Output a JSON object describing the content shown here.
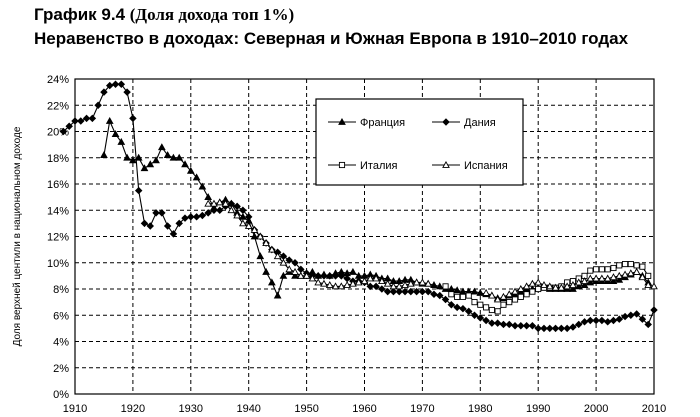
{
  "header": {
    "label": "График 9.4",
    "subtitle": "(Доля дохода топ 1%)",
    "title": "Неравенство в доходах: Северная и Южная Европа в 1910–2010 годах"
  },
  "colors": {
    "line": "#000000",
    "grid": "#000000",
    "background": "#ffffff"
  },
  "chart_data": {
    "type": "line",
    "title": "Неравенство в доходах: Северная и Южная Европа в 1910–2010 годах",
    "subtitle": "(Доля дохода топ 1%)",
    "xlabel": "",
    "ylabel": "Доля верхней центили в национальном доходе",
    "xlim": [
      1910,
      2010
    ],
    "ylim": [
      0,
      24
    ],
    "x_ticks": [
      1910,
      1920,
      1930,
      1940,
      1950,
      1960,
      1970,
      1980,
      1990,
      2000,
      2010
    ],
    "x_tick_labels": [
      "1910",
      "1920",
      "1930",
      "1940",
      "1950",
      "1960",
      "1970",
      "1980",
      "1990",
      "2000",
      "2010"
    ],
    "y_ticks": [
      0,
      2,
      4,
      6,
      8,
      10,
      12,
      14,
      16,
      18,
      20,
      22,
      24
    ],
    "y_tick_labels": [
      "0%",
      "2%",
      "4%",
      "6%",
      "8%",
      "10%",
      "12%",
      "14%",
      "16%",
      "18%",
      "20%",
      "22%",
      "24%"
    ],
    "grid": "dashed",
    "legend_position": "top-right",
    "series": [
      {
        "name": "Франция",
        "marker": "filled-triangle",
        "points": [
          [
            1915,
            18.2
          ],
          [
            1916,
            20.8
          ],
          [
            1917,
            19.8
          ],
          [
            1918,
            19.2
          ],
          [
            1919,
            18.0
          ],
          [
            1920,
            17.8
          ],
          [
            1921,
            18.0
          ],
          [
            1922,
            17.2
          ],
          [
            1923,
            17.5
          ],
          [
            1924,
            17.8
          ],
          [
            1925,
            18.8
          ],
          [
            1926,
            18.2
          ],
          [
            1927,
            18.0
          ],
          [
            1928,
            18.0
          ],
          [
            1929,
            17.5
          ],
          [
            1930,
            17.0
          ],
          [
            1931,
            16.5
          ],
          [
            1932,
            15.8
          ],
          [
            1933,
            15.0
          ],
          [
            1934,
            14.2
          ],
          [
            1935,
            14.6
          ],
          [
            1936,
            14.8
          ],
          [
            1937,
            14.5
          ],
          [
            1938,
            13.8
          ],
          [
            1939,
            13.5
          ],
          [
            1940,
            13.2
          ],
          [
            1941,
            12.0
          ],
          [
            1942,
            10.5
          ],
          [
            1943,
            9.3
          ],
          [
            1944,
            8.5
          ],
          [
            1945,
            7.5
          ],
          [
            1946,
            9.0
          ],
          [
            1947,
            9.3
          ],
          [
            1948,
            9.0
          ],
          [
            1949,
            9.0
          ],
          [
            1950,
            9.0
          ],
          [
            1951,
            9.3
          ],
          [
            1952,
            9.0
          ],
          [
            1953,
            9.1
          ],
          [
            1954,
            9.0
          ],
          [
            1955,
            9.2
          ],
          [
            1956,
            9.3
          ],
          [
            1957,
            9.2
          ],
          [
            1958,
            9.3
          ],
          [
            1959,
            9.0
          ],
          [
            1960,
            9.0
          ],
          [
            1961,
            9.1
          ],
          [
            1962,
            9.0
          ],
          [
            1963,
            8.8
          ],
          [
            1964,
            8.8
          ],
          [
            1965,
            8.6
          ],
          [
            1966,
            8.6
          ],
          [
            1967,
            8.7
          ],
          [
            1968,
            8.7
          ],
          [
            1969,
            8.5
          ],
          [
            1970,
            8.4
          ],
          [
            1971,
            8.4
          ],
          [
            1972,
            8.3
          ],
          [
            1973,
            8.2
          ],
          [
            1974,
            8.0
          ],
          [
            1975,
            8.0
          ],
          [
            1976,
            7.9
          ],
          [
            1977,
            7.8
          ],
          [
            1978,
            7.8
          ],
          [
            1979,
            7.8
          ],
          [
            1980,
            7.7
          ],
          [
            1981,
            7.6
          ],
          [
            1982,
            7.5
          ],
          [
            1983,
            7.3
          ],
          [
            1984,
            7.3
          ],
          [
            1985,
            7.5
          ],
          [
            1986,
            7.6
          ],
          [
            1987,
            7.8
          ],
          [
            1988,
            8.0
          ],
          [
            1989,
            8.0
          ],
          [
            1990,
            8.1
          ],
          [
            1991,
            8.1
          ],
          [
            1992,
            8.0
          ],
          [
            1993,
            8.0
          ],
          [
            1994,
            8.0
          ],
          [
            1995,
            8.0
          ],
          [
            1996,
            8.0
          ],
          [
            1997,
            8.2
          ],
          [
            1998,
            8.3
          ],
          [
            1999,
            8.5
          ],
          [
            2000,
            8.6
          ],
          [
            2001,
            8.6
          ],
          [
            2002,
            8.6
          ],
          [
            2003,
            8.6
          ],
          [
            2004,
            8.7
          ],
          [
            2005,
            8.9
          ],
          [
            2006,
            9.1
          ],
          [
            2007,
            9.3
          ],
          [
            2008,
            9.0
          ],
          [
            2009,
            8.5
          ]
        ]
      },
      {
        "name": "Дания",
        "marker": "filled-diamond",
        "points": [
          [
            1908,
            20.0
          ],
          [
            1909,
            20.4
          ],
          [
            1910,
            20.8
          ],
          [
            1911,
            20.8
          ],
          [
            1912,
            21.0
          ],
          [
            1913,
            21.0
          ],
          [
            1914,
            22.0
          ],
          [
            1915,
            23.0
          ],
          [
            1916,
            23.5
          ],
          [
            1917,
            23.6
          ],
          [
            1918,
            23.6
          ],
          [
            1919,
            23.0
          ],
          [
            1920,
            21.0
          ],
          [
            1921,
            15.5
          ],
          [
            1922,
            13.0
          ],
          [
            1923,
            12.8
          ],
          [
            1924,
            13.8
          ],
          [
            1925,
            13.8
          ],
          [
            1926,
            12.8
          ],
          [
            1927,
            12.2
          ],
          [
            1928,
            13.0
          ],
          [
            1929,
            13.4
          ],
          [
            1930,
            13.5
          ],
          [
            1931,
            13.5
          ],
          [
            1932,
            13.6
          ],
          [
            1933,
            13.8
          ],
          [
            1934,
            14.0
          ],
          [
            1935,
            14.0
          ],
          [
            1936,
            14.3
          ],
          [
            1937,
            14.5
          ],
          [
            1938,
            14.3
          ],
          [
            1939,
            14.0
          ],
          [
            1940,
            13.5
          ],
          [
            1941,
            12.5
          ],
          [
            1942,
            12.0
          ],
          [
            1943,
            11.5
          ],
          [
            1944,
            11.0
          ],
          [
            1945,
            10.8
          ],
          [
            1946,
            10.5
          ],
          [
            1947,
            10.2
          ],
          [
            1948,
            10.0
          ],
          [
            1949,
            9.5
          ],
          [
            1950,
            9.2
          ],
          [
            1951,
            9.0
          ],
          [
            1952,
            9.0
          ],
          [
            1953,
            9.0
          ],
          [
            1954,
            9.0
          ],
          [
            1955,
            9.0
          ],
          [
            1956,
            9.0
          ],
          [
            1957,
            8.8
          ],
          [
            1958,
            8.6
          ],
          [
            1959,
            8.6
          ],
          [
            1960,
            8.5
          ],
          [
            1961,
            8.2
          ],
          [
            1962,
            8.2
          ],
          [
            1963,
            8.0
          ],
          [
            1964,
            7.8
          ],
          [
            1965,
            7.8
          ],
          [
            1966,
            7.8
          ],
          [
            1967,
            7.8
          ],
          [
            1968,
            7.8
          ],
          [
            1969,
            7.8
          ],
          [
            1970,
            7.8
          ],
          [
            1971,
            7.8
          ],
          [
            1972,
            7.6
          ],
          [
            1973,
            7.5
          ],
          [
            1974,
            7.2
          ],
          [
            1975,
            6.8
          ],
          [
            1976,
            6.6
          ],
          [
            1977,
            6.5
          ],
          [
            1978,
            6.3
          ],
          [
            1979,
            6.0
          ],
          [
            1980,
            5.8
          ],
          [
            1981,
            5.6
          ],
          [
            1982,
            5.4
          ],
          [
            1983,
            5.4
          ],
          [
            1984,
            5.3
          ],
          [
            1985,
            5.3
          ],
          [
            1986,
            5.2
          ],
          [
            1987,
            5.2
          ],
          [
            1988,
            5.2
          ],
          [
            1989,
            5.2
          ],
          [
            1990,
            5.0
          ],
          [
            1991,
            5.0
          ],
          [
            1992,
            5.0
          ],
          [
            1993,
            5.0
          ],
          [
            1994,
            5.0
          ],
          [
            1995,
            5.0
          ],
          [
            1996,
            5.1
          ],
          [
            1997,
            5.3
          ],
          [
            1998,
            5.5
          ],
          [
            1999,
            5.6
          ],
          [
            2000,
            5.6
          ],
          [
            2001,
            5.6
          ],
          [
            2002,
            5.5
          ],
          [
            2003,
            5.6
          ],
          [
            2004,
            5.7
          ],
          [
            2005,
            5.9
          ],
          [
            2006,
            6.0
          ],
          [
            2007,
            6.1
          ],
          [
            2008,
            5.7
          ],
          [
            2009,
            5.3
          ],
          [
            2010,
            6.4
          ]
        ]
      },
      {
        "name": "Италия",
        "marker": "open-square",
        "points": [
          [
            1974,
            8.2
          ],
          [
            1975,
            7.6
          ],
          [
            1976,
            7.4
          ],
          [
            1977,
            7.4
          ],
          [
            1978,
            7.5
          ],
          [
            1979,
            7.0
          ],
          [
            1980,
            6.8
          ],
          [
            1981,
            6.6
          ],
          [
            1982,
            6.4
          ],
          [
            1983,
            6.3
          ],
          [
            1984,
            6.8
          ],
          [
            1985,
            7.0
          ],
          [
            1986,
            7.2
          ],
          [
            1987,
            7.4
          ],
          [
            1988,
            7.6
          ],
          [
            1989,
            7.8
          ],
          [
            1990,
            8.0
          ],
          [
            1991,
            8.1
          ],
          [
            1992,
            8.1
          ],
          [
            1993,
            8.1
          ],
          [
            1994,
            8.2
          ],
          [
            1995,
            8.5
          ],
          [
            1996,
            8.6
          ],
          [
            1997,
            8.8
          ],
          [
            1998,
            9.0
          ],
          [
            1999,
            9.4
          ],
          [
            2000,
            9.5
          ],
          [
            2001,
            9.5
          ],
          [
            2002,
            9.5
          ],
          [
            2003,
            9.6
          ],
          [
            2004,
            9.8
          ],
          [
            2005,
            9.9
          ],
          [
            2006,
            9.9
          ],
          [
            2007,
            9.8
          ],
          [
            2008,
            9.7
          ],
          [
            2009,
            9.0
          ]
        ]
      },
      {
        "name": "Испания",
        "marker": "open-triangle",
        "points": [
          [
            1933,
            14.5
          ],
          [
            1934,
            14.5
          ],
          [
            1935,
            14.6
          ],
          [
            1936,
            14.5
          ],
          [
            1937,
            14.0
          ],
          [
            1938,
            13.6
          ],
          [
            1939,
            13.0
          ],
          [
            1940,
            12.8
          ],
          [
            1941,
            12.5
          ],
          [
            1942,
            12.0
          ],
          [
            1943,
            11.5
          ],
          [
            1944,
            11.0
          ],
          [
            1945,
            10.5
          ],
          [
            1946,
            10.0
          ],
          [
            1947,
            9.5
          ],
          [
            1948,
            9.3
          ],
          [
            1949,
            9.0
          ],
          [
            1950,
            9.0
          ],
          [
            1951,
            8.8
          ],
          [
            1952,
            8.5
          ],
          [
            1953,
            8.4
          ],
          [
            1954,
            8.3
          ],
          [
            1955,
            8.2
          ],
          [
            1956,
            8.2
          ],
          [
            1957,
            8.3
          ],
          [
            1958,
            8.4
          ],
          [
            1959,
            8.5
          ],
          [
            1960,
            8.6
          ],
          [
            1961,
            8.8
          ],
          [
            1962,
            8.8
          ],
          [
            1963,
            8.6
          ],
          [
            1964,
            8.4
          ],
          [
            1965,
            8.2
          ],
          [
            1966,
            8.2
          ],
          [
            1967,
            8.3
          ],
          [
            1968,
            8.4
          ],
          [
            1969,
            8.5
          ],
          [
            1970,
            8.5
          ],
          [
            1971,
            8.4
          ],
          [
            1981,
            7.7
          ],
          [
            1982,
            7.5
          ],
          [
            1983,
            7.2
          ],
          [
            1984,
            7.4
          ],
          [
            1985,
            7.6
          ],
          [
            1986,
            7.8
          ],
          [
            1987,
            8.0
          ],
          [
            1988,
            8.2
          ],
          [
            1989,
            8.4
          ],
          [
            1990,
            8.5
          ],
          [
            1991,
            8.3
          ],
          [
            1992,
            8.2
          ],
          [
            1993,
            8.1
          ],
          [
            1994,
            8.1
          ],
          [
            1995,
            8.2
          ],
          [
            1996,
            8.3
          ],
          [
            1997,
            8.5
          ],
          [
            1998,
            8.6
          ],
          [
            1999,
            8.8
          ],
          [
            2000,
            8.8
          ],
          [
            2001,
            8.8
          ],
          [
            2002,
            8.8
          ],
          [
            2003,
            8.9
          ],
          [
            2004,
            9.0
          ],
          [
            2005,
            9.1
          ],
          [
            2006,
            9.2
          ],
          [
            2007,
            9.3
          ],
          [
            2008,
            8.9
          ],
          [
            2009,
            8.3
          ],
          [
            2010,
            8.2
          ]
        ]
      }
    ]
  }
}
